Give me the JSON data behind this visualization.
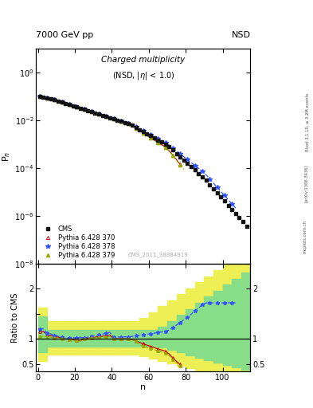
{
  "header_left": "7000 GeV pp",
  "header_right": "NSD",
  "right_label_top": "Rivet 3.1.10, ≥ 3.2M events",
  "arxiv_label": "[arXiv:1306.3436]",
  "mcplots_label": "mcplots.cern.ch",
  "watermark": "CMS_2011_S8884919",
  "xlabel": "n",
  "ylabel_top": "P$_n$",
  "ylabel_bottom": "Ratio to CMS",
  "legend_entries": [
    "CMS",
    "Pythia 6.428 370",
    "Pythia 6.428 378",
    "Pythia 6.428 379"
  ],
  "cms_color": "#111111",
  "line370_color": "#cc0000",
  "line378_color": "#3355ff",
  "line379_color": "#99aa00",
  "band_green_color": "#88dd88",
  "band_yellow_color": "#eeee55"
}
